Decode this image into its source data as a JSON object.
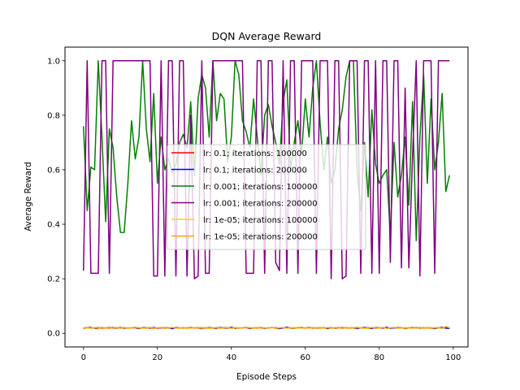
{
  "chart_data": {
    "type": "line",
    "title": "DQN Average Reward",
    "xlabel": "Episode Steps",
    "ylabel": "Average Reward",
    "xlim": [
      -5,
      104
    ],
    "ylim": [
      -0.05,
      1.05
    ],
    "xticks": [
      0,
      20,
      40,
      60,
      80,
      100
    ],
    "yticks": [
      0.0,
      0.2,
      0.4,
      0.6,
      0.8,
      1.0
    ],
    "xtick_labels": [
      "0",
      "20",
      "40",
      "60",
      "80",
      "100"
    ],
    "ytick_labels": [
      "0.0",
      "0.2",
      "0.4",
      "0.6",
      "0.8",
      "1.0"
    ],
    "grid": false,
    "legend_position": "center",
    "x": [
      0,
      1,
      2,
      3,
      4,
      5,
      6,
      7,
      8,
      9,
      10,
      11,
      12,
      13,
      14,
      15,
      16,
      17,
      18,
      19,
      20,
      21,
      22,
      23,
      24,
      25,
      26,
      27,
      28,
      29,
      30,
      31,
      32,
      33,
      34,
      35,
      36,
      37,
      38,
      39,
      40,
      41,
      42,
      43,
      44,
      45,
      46,
      47,
      48,
      49,
      50,
      51,
      52,
      53,
      54,
      55,
      56,
      57,
      58,
      59,
      60,
      61,
      62,
      63,
      64,
      65,
      66,
      67,
      68,
      69,
      70,
      71,
      72,
      73,
      74,
      75,
      76,
      77,
      78,
      79,
      80,
      81,
      82,
      83,
      84,
      85,
      86,
      87,
      88,
      89,
      90,
      91,
      92,
      93,
      94,
      95,
      96,
      97,
      98,
      99
    ],
    "series": [
      {
        "name": "lr: 0.1; iterations: 100000",
        "color": "#ff0000",
        "values": [
          0.02,
          0.021,
          0.019,
          0.02,
          0.022,
          0.018,
          0.02,
          0.021,
          0.019,
          0.02,
          0.021,
          0.02,
          0.019,
          0.02,
          0.022,
          0.02,
          0.019,
          0.021,
          0.02,
          0.018,
          0.02,
          0.021,
          0.02,
          0.019,
          0.02,
          0.021,
          0.02,
          0.019,
          0.02,
          0.022,
          0.02,
          0.019,
          0.021,
          0.02,
          0.018,
          0.02,
          0.021,
          0.02,
          0.019,
          0.02,
          0.021,
          0.02,
          0.019,
          0.02,
          0.022,
          0.02,
          0.019,
          0.021,
          0.02,
          0.018,
          0.02,
          0.021,
          0.02,
          0.019,
          0.02,
          0.021,
          0.02,
          0.019,
          0.02,
          0.022,
          0.02,
          0.019,
          0.021,
          0.02,
          0.018,
          0.02,
          0.021,
          0.02,
          0.019,
          0.02,
          0.021,
          0.02,
          0.019,
          0.02,
          0.022,
          0.02,
          0.019,
          0.021,
          0.02,
          0.018,
          0.02,
          0.021,
          0.02,
          0.019,
          0.02,
          0.021,
          0.02,
          0.019,
          0.02,
          0.022,
          0.02,
          0.019,
          0.021,
          0.02,
          0.018,
          0.02,
          0.021,
          0.02,
          0.022,
          0.019
        ]
      },
      {
        "name": "lr: 0.1; iterations: 200000",
        "color": "#0000ff",
        "values": [
          0.018,
          0.02,
          0.022,
          0.019,
          0.017,
          0.021,
          0.02,
          0.018,
          0.022,
          0.019,
          0.02,
          0.018,
          0.021,
          0.019,
          0.02,
          0.017,
          0.021,
          0.02,
          0.019,
          0.022,
          0.018,
          0.02,
          0.019,
          0.021,
          0.017,
          0.02,
          0.019,
          0.022,
          0.018,
          0.02,
          0.021,
          0.019,
          0.017,
          0.02,
          0.022,
          0.019,
          0.018,
          0.021,
          0.02,
          0.019,
          0.022,
          0.018,
          0.02,
          0.019,
          0.021,
          0.017,
          0.02,
          0.019,
          0.022,
          0.018,
          0.02,
          0.021,
          0.019,
          0.017,
          0.02,
          0.022,
          0.019,
          0.018,
          0.021,
          0.02,
          0.019,
          0.022,
          0.018,
          0.02,
          0.019,
          0.021,
          0.017,
          0.02,
          0.019,
          0.022,
          0.018,
          0.02,
          0.021,
          0.019,
          0.017,
          0.02,
          0.022,
          0.019,
          0.018,
          0.021,
          0.02,
          0.019,
          0.022,
          0.018,
          0.02,
          0.019,
          0.021,
          0.017,
          0.02,
          0.019,
          0.022,
          0.018,
          0.02,
          0.021,
          0.019,
          0.017,
          0.02,
          0.022,
          0.019,
          0.018
        ]
      },
      {
        "name": "lr: 0.001; iterations: 100000",
        "color": "#008000",
        "values": [
          0.76,
          0.45,
          0.61,
          0.6,
          1.0,
          0.72,
          0.41,
          0.75,
          0.68,
          0.5,
          0.37,
          0.37,
          0.55,
          0.78,
          0.64,
          0.72,
          1.0,
          0.75,
          0.63,
          0.88,
          0.55,
          0.72,
          0.6,
          0.64,
          0.59,
          0.62,
          0.7,
          0.73,
          0.68,
          0.85,
          0.58,
          0.86,
          0.95,
          0.9,
          0.72,
          1.0,
          0.78,
          0.88,
          0.86,
          0.63,
          0.72,
          1.0,
          0.95,
          0.78,
          0.74,
          0.68,
          0.86,
          0.72,
          0.58,
          0.8,
          0.84,
          0.76,
          0.7,
          0.62,
          0.85,
          0.93,
          0.6,
          0.7,
          0.78,
          0.66,
          0.86,
          0.72,
          0.9,
          1.0,
          0.77,
          0.6,
          0.72,
          0.55,
          0.6,
          0.75,
          0.82,
          0.94,
          1.0,
          1.0,
          0.6,
          0.45,
          0.7,
          0.5,
          0.82,
          0.62,
          0.55,
          0.58,
          0.6,
          0.36,
          0.7,
          0.5,
          0.58,
          0.72,
          0.47,
          0.85,
          0.34,
          0.72,
          0.95,
          0.55,
          0.86,
          0.6,
          0.7,
          0.88,
          0.52,
          0.58
        ]
      },
      {
        "name": "lr: 0.001; iterations: 200000",
        "color": "#800080",
        "values": [
          0.23,
          1.0,
          0.22,
          0.22,
          0.22,
          1.0,
          1.0,
          0.22,
          1.0,
          1.0,
          1.0,
          1.0,
          1.0,
          1.0,
          1.0,
          1.0,
          1.0,
          1.0,
          1.0,
          0.21,
          0.21,
          1.0,
          0.21,
          1.0,
          1.0,
          0.21,
          1.0,
          1.0,
          0.21,
          0.8,
          0.2,
          0.21,
          1.0,
          0.22,
          0.22,
          1.0,
          1.0,
          1.0,
          1.0,
          1.0,
          1.0,
          1.0,
          1.0,
          1.0,
          0.22,
          0.22,
          0.22,
          1.0,
          1.0,
          0.22,
          1.0,
          1.0,
          0.26,
          0.23,
          1.0,
          0.22,
          1.0,
          1.0,
          0.22,
          1.0,
          1.0,
          1.0,
          1.0,
          0.22,
          1.0,
          1.0,
          1.0,
          0.2,
          1.0,
          1.0,
          0.2,
          0.21,
          1.0,
          1.0,
          1.0,
          0.22,
          1.0,
          1.0,
          0.22,
          1.0,
          0.22,
          1.0,
          1.0,
          0.26,
          1.0,
          1.0,
          0.24,
          0.9,
          0.24,
          0.65,
          1.0,
          0.21,
          1.0,
          1.0,
          1.0,
          0.22,
          1.0,
          1.0,
          1.0,
          1.0
        ]
      },
      {
        "name": "lr: 1e-05; iterations: 100000",
        "color": "#ffd700",
        "values": [
          0.021,
          0.019,
          0.02,
          0.022,
          0.018,
          0.02,
          0.021,
          0.019,
          0.02,
          0.022,
          0.018,
          0.02,
          0.021,
          0.019,
          0.02,
          0.022,
          0.018,
          0.02,
          0.021,
          0.019,
          0.02,
          0.022,
          0.018,
          0.02,
          0.021,
          0.019,
          0.02,
          0.022,
          0.018,
          0.02,
          0.021,
          0.019,
          0.02,
          0.022,
          0.018,
          0.02,
          0.021,
          0.019,
          0.02,
          0.022,
          0.018,
          0.02,
          0.021,
          0.019,
          0.02,
          0.022,
          0.018,
          0.02,
          0.021,
          0.019,
          0.02,
          0.022,
          0.018,
          0.02,
          0.021,
          0.019,
          0.02,
          0.022,
          0.018,
          0.02,
          0.021,
          0.019,
          0.02,
          0.022,
          0.018,
          0.02,
          0.021,
          0.019,
          0.02,
          0.022,
          0.018,
          0.02,
          0.021,
          0.019,
          0.02,
          0.022,
          0.018,
          0.02,
          0.021,
          0.019,
          0.02,
          0.022,
          0.018,
          0.02,
          0.021,
          0.019,
          0.02,
          0.022,
          0.018,
          0.02,
          0.021,
          0.019,
          0.02,
          0.022,
          0.018,
          0.02,
          0.021,
          0.019,
          0.025,
          0.02
        ]
      },
      {
        "name": "lr: 1e-05; iterations: 200000",
        "color": "#ffa500",
        "values": [
          0.019,
          0.021,
          0.018,
          0.02,
          0.022,
          0.019,
          0.02,
          0.018,
          0.021,
          0.02,
          0.019,
          0.022,
          0.018,
          0.02,
          0.021,
          0.019,
          0.02,
          0.018,
          0.022,
          0.02,
          0.019,
          0.021,
          0.018,
          0.02,
          0.022,
          0.019,
          0.02,
          0.018,
          0.021,
          0.02,
          0.019,
          0.022,
          0.018,
          0.02,
          0.021,
          0.019,
          0.02,
          0.018,
          0.022,
          0.02,
          0.019,
          0.021,
          0.018,
          0.02,
          0.022,
          0.019,
          0.02,
          0.018,
          0.021,
          0.02,
          0.019,
          0.022,
          0.018,
          0.02,
          0.021,
          0.019,
          0.02,
          0.018,
          0.022,
          0.02,
          0.019,
          0.021,
          0.018,
          0.02,
          0.022,
          0.019,
          0.02,
          0.018,
          0.021,
          0.02,
          0.019,
          0.022,
          0.018,
          0.02,
          0.021,
          0.019,
          0.02,
          0.018,
          0.022,
          0.02,
          0.019,
          0.021,
          0.018,
          0.02,
          0.022,
          0.019,
          0.02,
          0.018,
          0.021,
          0.02,
          0.019,
          0.022,
          0.018,
          0.02,
          0.021,
          0.019,
          0.02,
          0.018,
          0.024,
          0.021
        ]
      }
    ]
  }
}
